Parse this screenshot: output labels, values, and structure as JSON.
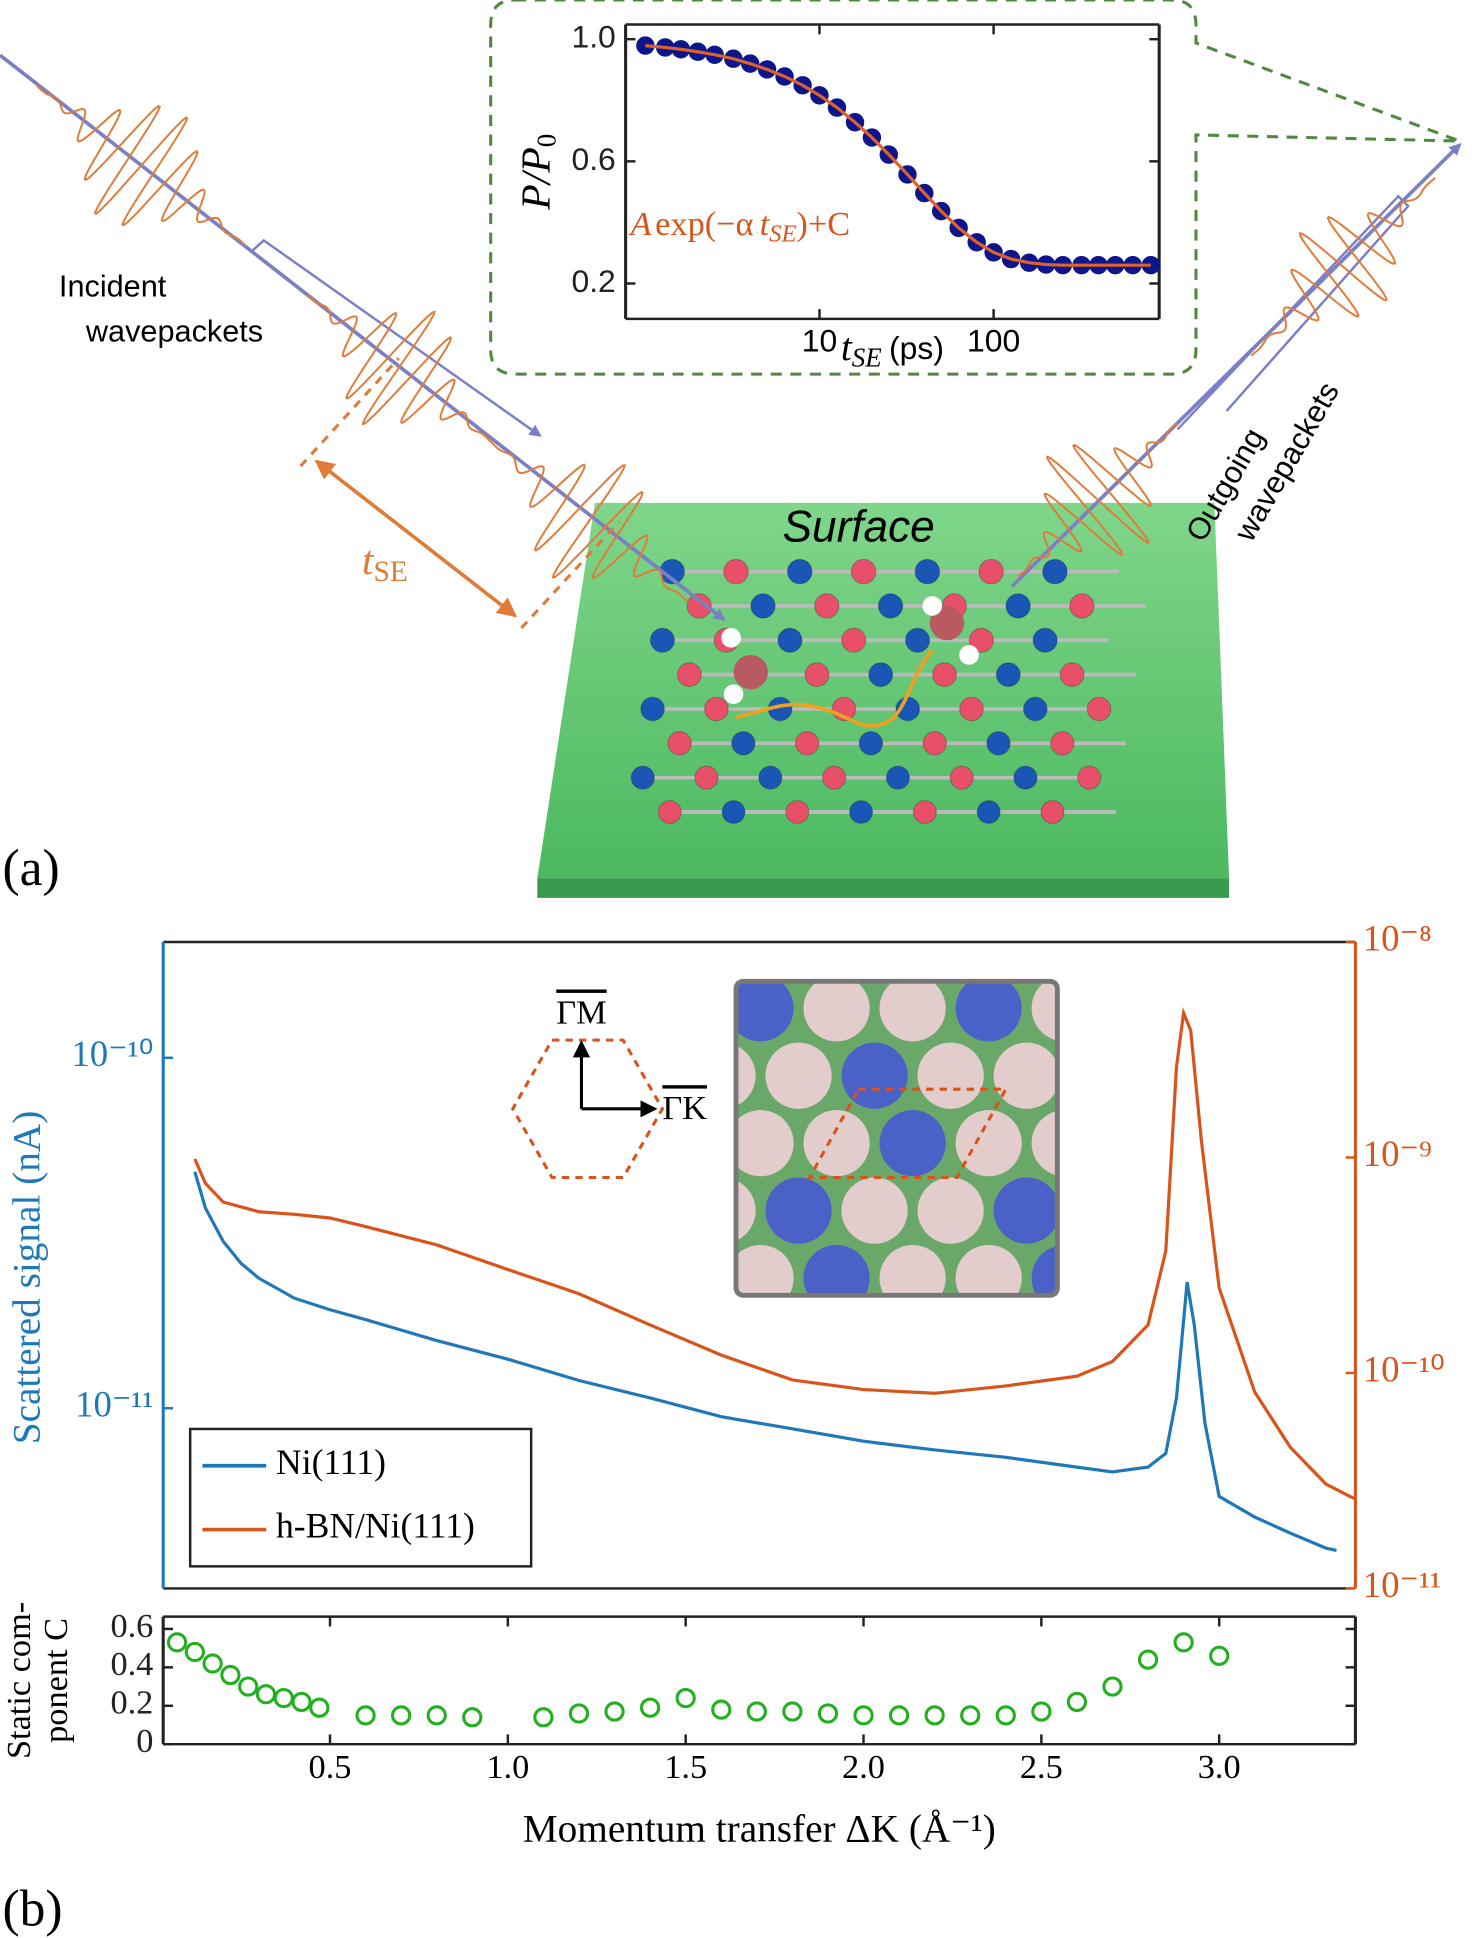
{
  "chart_data": [
    {
      "type": "scatter",
      "xscale": "log",
      "xlabel": [
        "t",
        "SE",
        "(ps)"
      ],
      "ylabel": [
        "P/P",
        "0"
      ],
      "annotation": [
        "A",
        "exp(−α",
        "t",
        "SE",
        ")+C"
      ],
      "x": [
        1,
        1.3,
        1.6,
        2,
        2.5,
        3.2,
        4,
        5,
        6.3,
        8,
        10,
        12.6,
        16,
        20,
        25,
        32,
        40,
        50,
        63,
        80,
        100,
        126,
        160,
        200,
        250,
        320,
        400,
        500,
        630,
        800
      ],
      "series": [
        {
          "style": "markers",
          "marker": "filled",
          "color": "#0c168c",
          "values": [
            0.979,
            0.973,
            0.967,
            0.959,
            0.949,
            0.936,
            0.92,
            0.901,
            0.878,
            0.849,
            0.816,
            0.776,
            0.728,
            0.678,
            0.622,
            0.557,
            0.496,
            0.437,
            0.382,
            0.335,
            0.302,
            0.28,
            0.268,
            0.262,
            0.26,
            0.26,
            0.26,
            0.26,
            0.26,
            0.26
          ]
        },
        {
          "style": "line",
          "color": "#e0602a",
          "values": [
            0.979,
            0.973,
            0.967,
            0.959,
            0.949,
            0.936,
            0.92,
            0.901,
            0.878,
            0.849,
            0.816,
            0.776,
            0.728,
            0.678,
            0.622,
            0.557,
            0.496,
            0.437,
            0.382,
            0.335,
            0.302,
            0.28,
            0.268,
            0.262,
            0.26,
            0.26,
            0.26,
            0.26,
            0.26,
            0.26
          ]
        }
      ],
      "xlim": [
        0.77,
        893
      ],
      "xticks": [
        10,
        100
      ],
      "ylim": [
        0.084,
        1.048
      ],
      "yticks": [
        {
          "value": 1,
          "label": "1.0"
        },
        0.6,
        0.2
      ]
    },
    {
      "type": "line",
      "yscale": "log",
      "y2scale": "log",
      "ylabel": "Scattered signal (nA)",
      "legend": "lower left",
      "series": [
        {
          "name": "Ni(111)",
          "color": "#1f78b8",
          "axis": "y",
          "x": [
            0.12,
            0.15,
            0.2,
            0.25,
            0.3,
            0.4,
            0.5,
            0.6,
            0.8,
            1.0,
            1.2,
            1.4,
            1.6,
            1.8,
            2.0,
            2.2,
            2.4,
            2.6,
            2.7,
            2.8,
            2.85,
            2.88,
            2.91,
            2.93,
            2.96,
            3.0,
            3.1,
            3.2,
            3.3,
            3.33
          ],
          "values": [
            4.73e-11,
            3.72e-11,
            2.99e-11,
            2.59e-11,
            2.35e-11,
            2.06e-11,
            1.91e-11,
            1.79e-11,
            1.56e-11,
            1.38e-11,
            1.2e-11,
            1.07e-11,
            9.46e-12,
            8.73e-12,
            8.05e-12,
            7.6e-12,
            7.24e-12,
            6.79e-12,
            6.58e-12,
            6.79e-12,
            7.43e-12,
            1.07e-11,
            2.29e-11,
            1.73e-11,
            9.08e-12,
            5.6e-12,
            4.89e-12,
            4.4e-12,
            3.99e-12,
            3.93e-12
          ]
        },
        {
          "name": "h-BN/Ni(111)",
          "color": "#d9541a",
          "axis": "y2",
          "x": [
            0.12,
            0.15,
            0.2,
            0.3,
            0.4,
            0.5,
            0.6,
            0.8,
            1.0,
            1.2,
            1.4,
            1.6,
            1.8,
            2.0,
            2.2,
            2.4,
            2.6,
            2.7,
            2.8,
            2.85,
            2.88,
            2.9,
            2.92,
            2.95,
            3.0,
            3.1,
            3.2,
            3.3,
            3.38
          ],
          "values": [
            9.84e-10,
            7.57e-10,
            6.21e-10,
            5.6e-10,
            5.45e-10,
            5.24e-10,
            4.78e-10,
            3.93e-10,
            3.02e-10,
            2.33e-10,
            1.67e-10,
            1.21e-10,
            9.29e-11,
            8.37e-11,
            8.05e-11,
            8.71e-11,
            9.66e-11,
            1.13e-10,
            1.67e-10,
            3.68e-10,
            2.63e-09,
            4.68e-09,
            3.89e-09,
            1.2e-09,
            2.48e-10,
            8.15e-11,
            4.52e-11,
            3.05e-11,
            2.61e-11
          ]
        }
      ],
      "xlim": [
        0.031,
        3.383
      ],
      "ylim": [
        3.06e-12,
        2.14e-10
      ],
      "yticks": [
        {
          "value": 1e-10,
          "label": "10⁻¹⁰"
        },
        {
          "value": 1e-11,
          "label": "10⁻¹¹"
        }
      ],
      "y2lim": [
        1e-11,
        1e-08
      ],
      "y2ticks": [
        {
          "value": 1e-08,
          "label": "10⁻⁸"
        },
        {
          "value": 1e-09,
          "label": "10⁻⁹"
        },
        {
          "value": 1e-10,
          "label": "10⁻¹⁰"
        },
        {
          "value": 1e-11,
          "label": "10⁻¹¹"
        }
      ]
    },
    {
      "type": "scatter",
      "xlabel": "Momentum transfer ΔK (Å⁻¹)",
      "ylabel": [
        "Static com-",
        "ponent C"
      ],
      "x": [
        0.07,
        0.12,
        0.17,
        0.22,
        0.27,
        0.32,
        0.37,
        0.42,
        0.47,
        0.6,
        0.7,
        0.8,
        0.9,
        1.1,
        1.2,
        1.3,
        1.4,
        1.5,
        1.6,
        1.7,
        1.8,
        1.9,
        2.0,
        2.1,
        2.2,
        2.3,
        2.4,
        2.5,
        2.6,
        2.7,
        2.8,
        2.9,
        3.0
      ],
      "series": [
        {
          "style": "markers",
          "marker": "open",
          "color": "#22b01e",
          "values": [
            0.53,
            0.48,
            0.42,
            0.36,
            0.3,
            0.26,
            0.24,
            0.22,
            0.19,
            0.15,
            0.15,
            0.15,
            0.14,
            0.14,
            0.16,
            0.17,
            0.19,
            0.24,
            0.18,
            0.17,
            0.17,
            0.16,
            0.15,
            0.15,
            0.15,
            0.15,
            0.15,
            0.17,
            0.22,
            0.3,
            0.44,
            0.53,
            0.46
          ]
        }
      ],
      "xlim": [
        0.031,
        3.383
      ],
      "xticks": [
        0.5,
        {
          "value": 1,
          "label": "1.0"
        },
        1.5,
        {
          "value": 2,
          "label": "2.0"
        },
        2.5,
        {
          "value": 3,
          "label": "3.0"
        }
      ],
      "ylim": [
        0,
        0.664
      ],
      "yticks": [
        0,
        0.2,
        0.4,
        0.6
      ]
    }
  ],
  "diagram": {
    "panel_a": "(a)",
    "panel_b": "(b)",
    "incident": [
      "Incident",
      "wavepackets"
    ],
    "outgoing": [
      "Outgoing",
      "wavepackets"
    ],
    "delay": [
      "t",
      "SE"
    ],
    "surface": "Surface",
    "directions": [
      "ΓM",
      "ΓK"
    ]
  }
}
